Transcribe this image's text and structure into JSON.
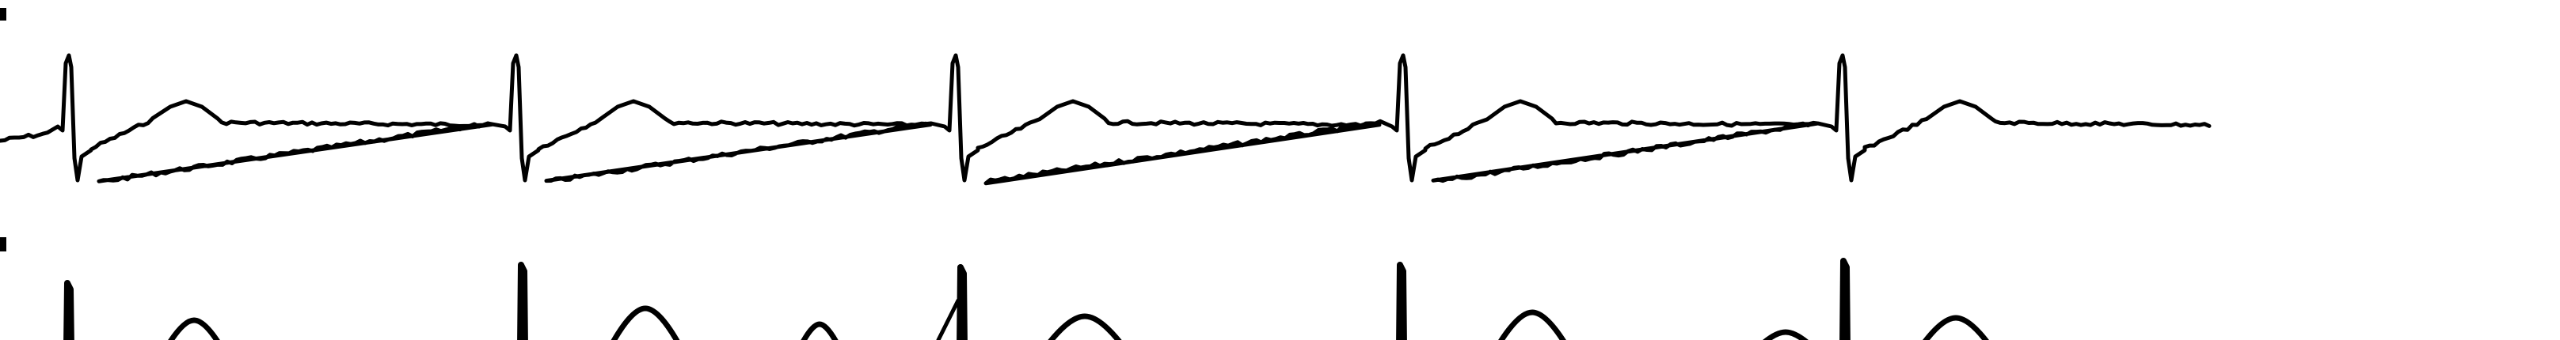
{
  "image": {
    "description_free": true,
    "background_color": "#ffffff",
    "trace_color": "#000000"
  },
  "leads": [
    {
      "id": "lead-upper",
      "beat_count": 5,
      "baseline_visible": true
    },
    {
      "id": "lead-lower",
      "beat_count": 5,
      "baseline_visible": false,
      "clipped_at_bottom": true
    }
  ]
}
